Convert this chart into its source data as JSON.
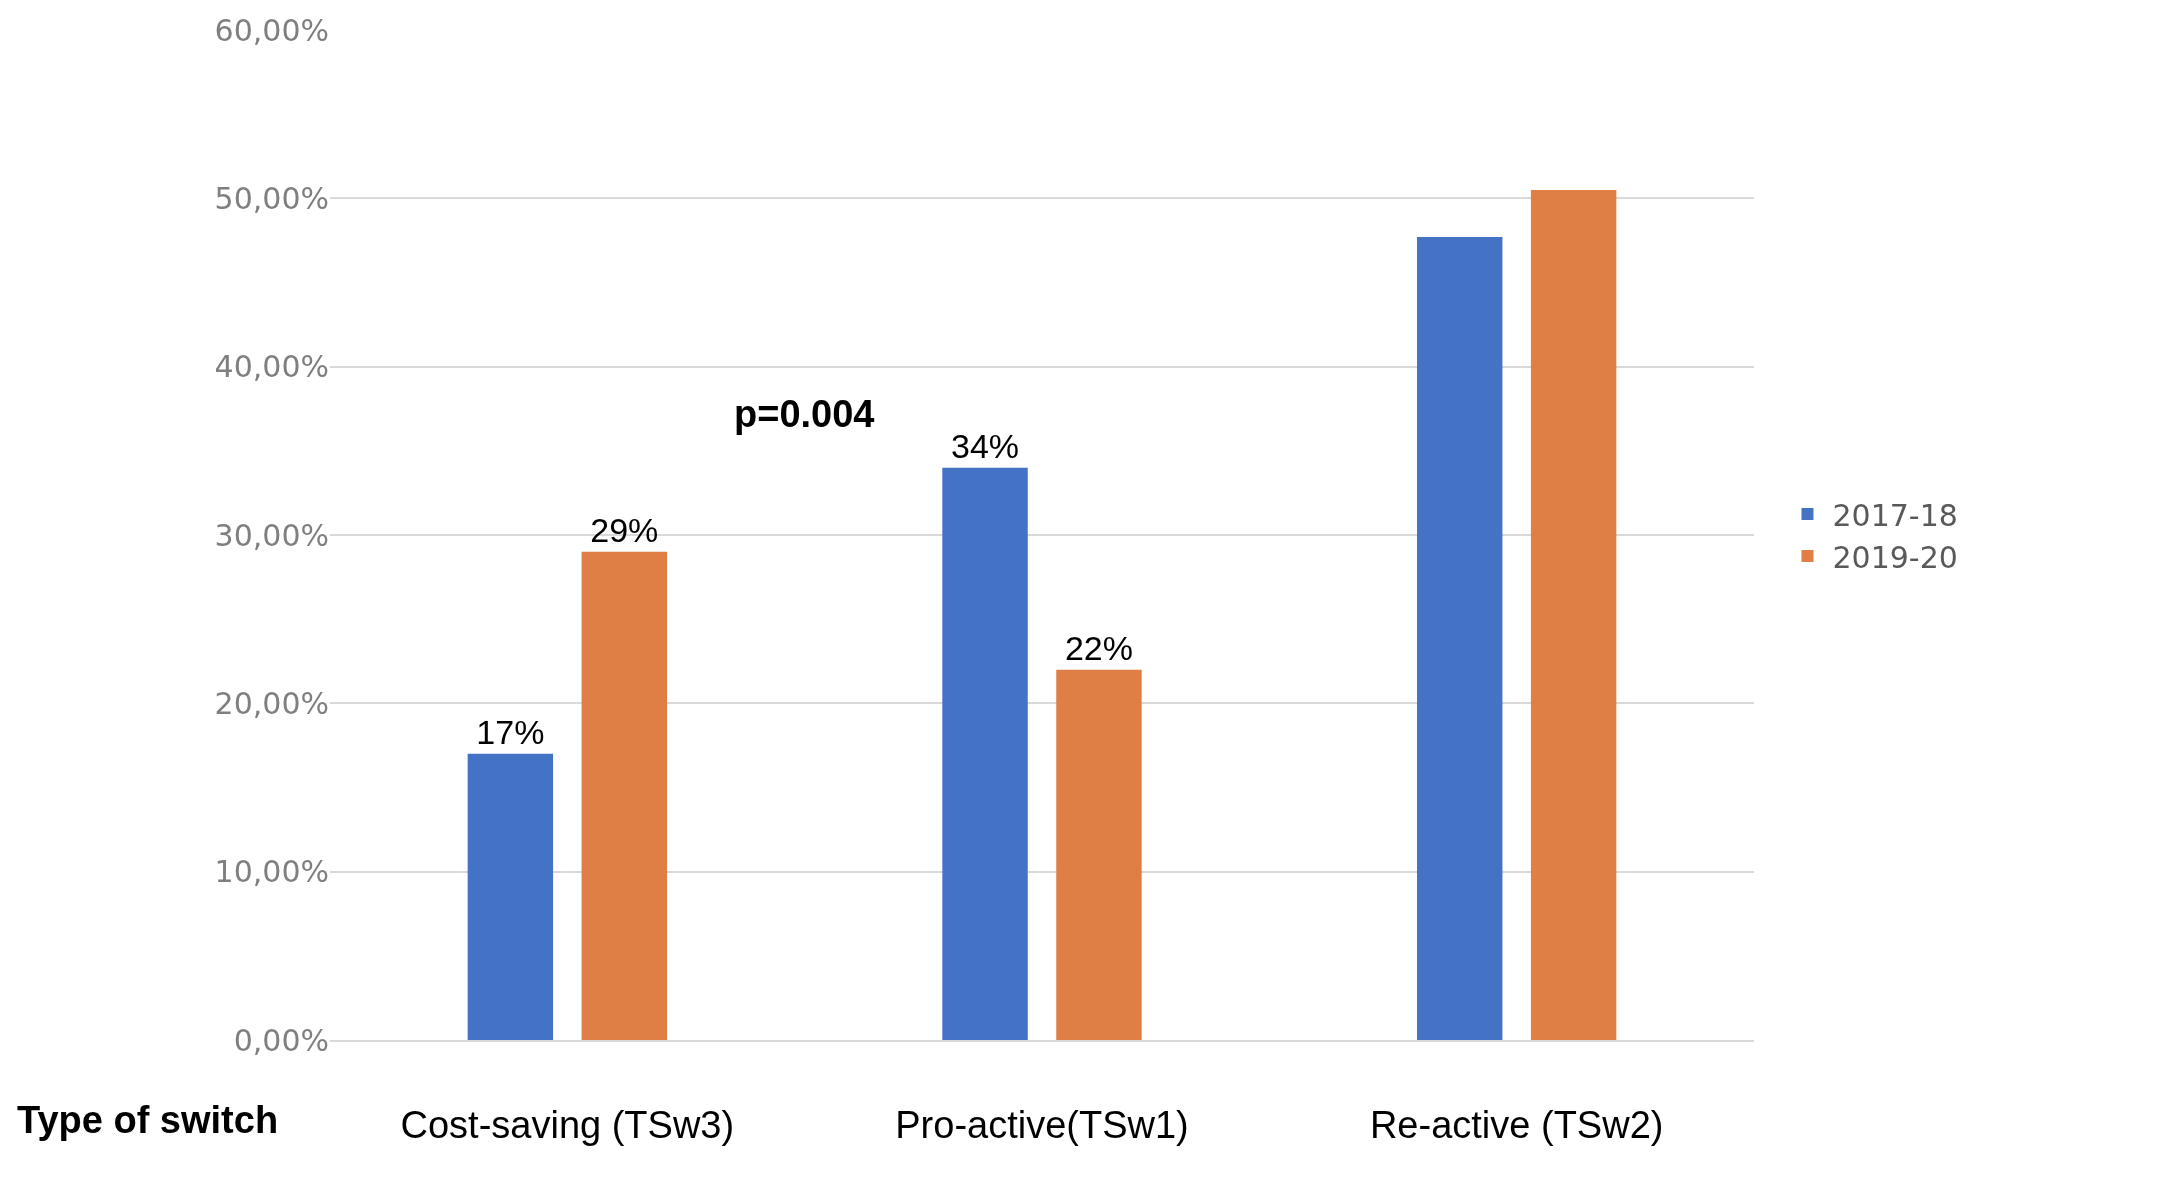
{
  "chart_data": {
    "type": "bar",
    "xlabel": "Type of switch",
    "categories": [
      "Cost-saving (TSw3)",
      "Pro-active(TSw1)",
      "Re-active (TSw2)"
    ],
    "series": [
      {
        "name": "2017-18",
        "color": "#4472c4",
        "values": [
          17,
          34,
          47.7
        ],
        "value_labels": [
          "17%",
          "34%",
          null
        ]
      },
      {
        "name": "2019-20",
        "color": "#e07f45",
        "values": [
          29,
          22,
          50.5
        ],
        "value_labels": [
          "29%",
          "22%",
          null
        ]
      }
    ],
    "ylim": [
      0,
      60
    ],
    "yticks": [
      {
        "value": 0,
        "label": "0,00%"
      },
      {
        "value": 10,
        "label": "10,00%"
      },
      {
        "value": 20,
        "label": "20,00%"
      },
      {
        "value": 30,
        "label": "30,00%"
      },
      {
        "value": 40,
        "label": "40,00%"
      },
      {
        "value": 50,
        "label": "50,00%"
      },
      {
        "value": 60,
        "label": "60,00%"
      }
    ],
    "annotations": [
      "p=0.004"
    ],
    "grid": "y",
    "legend": "right"
  }
}
